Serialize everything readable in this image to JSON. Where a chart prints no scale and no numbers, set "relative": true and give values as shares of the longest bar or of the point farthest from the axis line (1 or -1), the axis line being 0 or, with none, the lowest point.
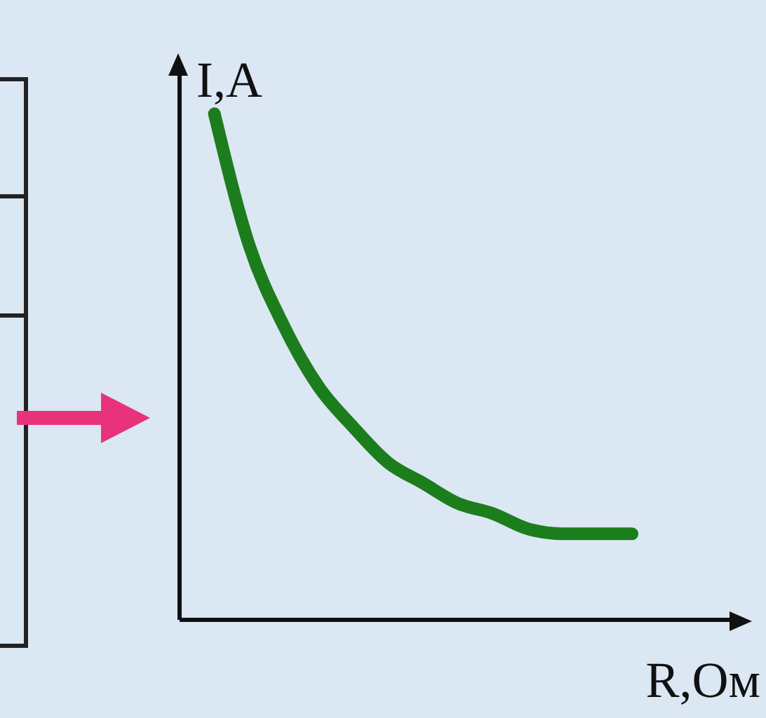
{
  "chart_data": {
    "type": "line",
    "relative": true,
    "xlabel": "R,Ом",
    "ylabel": "I,A",
    "categories": [
      null,
      null,
      null,
      null,
      null,
      null,
      null,
      null,
      null,
      null,
      null,
      null,
      null,
      null,
      null,
      null,
      null
    ],
    "series": [
      {
        "color": "#1c7d1c",
        "values": [
          null,
          1.0,
          0.74,
          0.58,
          0.46,
          0.38,
          0.31,
          0.27,
          0.23,
          0.21,
          0.18,
          0.17,
          0.17,
          0.17,
          null,
          null,
          null
        ]
      }
    ],
    "marker": "none"
  }
}
